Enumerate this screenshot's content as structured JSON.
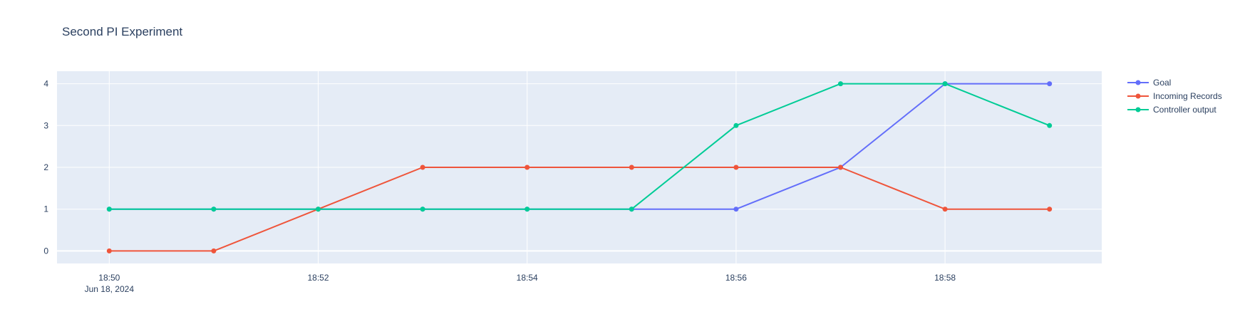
{
  "chart_data": {
    "type": "line",
    "title": "Second PI Experiment",
    "xlabel": "",
    "ylabel": "",
    "x": [
      "18:50",
      "18:51",
      "18:52",
      "18:53",
      "18:54",
      "18:55",
      "18:56",
      "18:57",
      "18:58",
      "18:59"
    ],
    "x_date": "Jun 18, 2024",
    "x_ticks": [
      "18:50",
      "18:52",
      "18:54",
      "18:56",
      "18:58"
    ],
    "x_range": [
      "18:49.5",
      "18:59.5"
    ],
    "y_ticks": [
      0,
      1,
      2,
      3,
      4
    ],
    "ylim": [
      -0.3,
      4.3
    ],
    "grid": true,
    "legend_placement": "top-right",
    "background": "#e5ecf6",
    "series": [
      {
        "name": "Goal",
        "color": "#636efa",
        "values": [
          1,
          1,
          1,
          1,
          1,
          1,
          1,
          2,
          4,
          4
        ]
      },
      {
        "name": "Incoming Records",
        "color": "#ef553b",
        "values": [
          0,
          0,
          1,
          2,
          2,
          2,
          2,
          2,
          1,
          1
        ]
      },
      {
        "name": "Controller output",
        "color": "#00cc96",
        "values": [
          1,
          1,
          1,
          1,
          1,
          1,
          3,
          4,
          4,
          3
        ]
      }
    ]
  }
}
